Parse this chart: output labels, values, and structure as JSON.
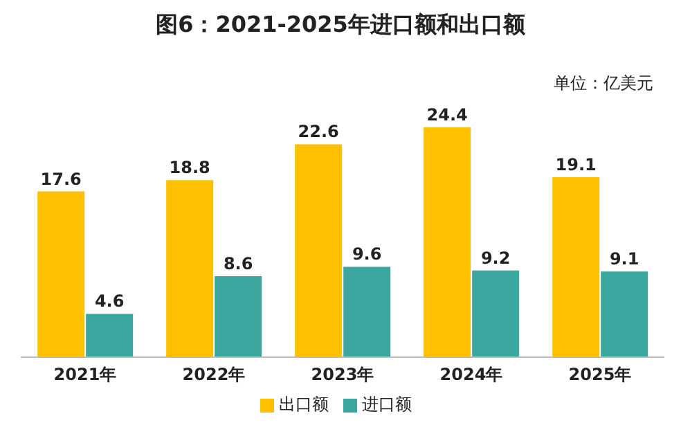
{
  "chart_data": {
    "type": "bar",
    "title": "图6：2021-2025年进口额和出口额",
    "annotations": [
      "单位：亿美元"
    ],
    "categories": [
      "2021年",
      "2022年",
      "2023年",
      "2024年",
      "2025年"
    ],
    "series": [
      {
        "name": "出口额",
        "color": "#ffc000",
        "values": [
          17.6,
          18.8,
          22.6,
          24.4,
          19.1
        ]
      },
      {
        "name": "进口额",
        "color": "#3aa69e",
        "values": [
          4.6,
          8.6,
          9.6,
          9.2,
          9.1
        ]
      }
    ],
    "data_labels": true,
    "legend": "bottom",
    "grid": false
  }
}
